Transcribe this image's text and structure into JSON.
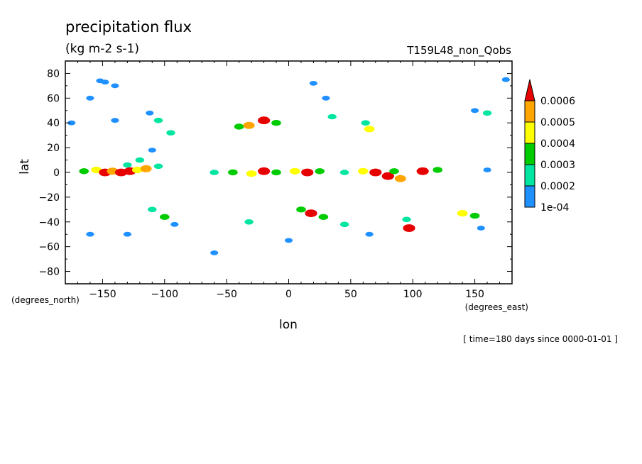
{
  "chart_data": {
    "type": "heatmap",
    "title": "precipitation flux",
    "subtitle": "(kg m-2 s-1)",
    "run_label": "T159L48_non_Qobs",
    "xlabel": "lon",
    "ylabel": "lat",
    "x_units": "(degrees_east)",
    "y_units": "(degrees_north)",
    "time_label": "[ time=180 days since 0000-01-01 ]",
    "xlim": [
      -180,
      180
    ],
    "ylim": [
      -90,
      90
    ],
    "x_ticks": [
      -150,
      -100,
      -50,
      0,
      50,
      100,
      150
    ],
    "y_ticks": [
      80,
      60,
      40,
      20,
      0,
      -20,
      -40,
      -60,
      -80
    ],
    "legend": {
      "placement": "right",
      "levels": [
        "1e-04",
        "0.0002",
        "0.0003",
        "0.0004",
        "0.0005",
        "0.0006"
      ],
      "colors": [
        "#1e90ff",
        "#00e5a0",
        "#00cc00",
        "#ffff00",
        "#ffa500",
        "#e60000"
      ]
    },
    "cells": [
      {
        "lon": -148,
        "lat": 73,
        "level": 1
      },
      {
        "lon": -152,
        "lat": 74,
        "level": 1
      },
      {
        "lon": -140,
        "lat": 70,
        "level": 1
      },
      {
        "lon": -160,
        "lat": 60,
        "level": 1
      },
      {
        "lon": -140,
        "lat": 42,
        "level": 1
      },
      {
        "lon": -175,
        "lat": 40,
        "level": 1
      },
      {
        "lon": -112,
        "lat": 48,
        "level": 1
      },
      {
        "lon": -105,
        "lat": 42,
        "level": 2
      },
      {
        "lon": -95,
        "lat": 32,
        "level": 2
      },
      {
        "lon": -110,
        "lat": 18,
        "level": 1
      },
      {
        "lon": -120,
        "lat": 10,
        "level": 2
      },
      {
        "lon": -130,
        "lat": 6,
        "level": 2
      },
      {
        "lon": -165,
        "lat": 1,
        "level": 3
      },
      {
        "lon": -155,
        "lat": 2,
        "level": 4
      },
      {
        "lon": -148,
        "lat": 0,
        "level": 6
      },
      {
        "lon": -142,
        "lat": 1,
        "level": 5
      },
      {
        "lon": -135,
        "lat": 0,
        "level": 6
      },
      {
        "lon": -128,
        "lat": 1,
        "level": 6
      },
      {
        "lon": -122,
        "lat": 2,
        "level": 4
      },
      {
        "lon": -115,
        "lat": 3,
        "level": 5
      },
      {
        "lon": -105,
        "lat": 5,
        "level": 2
      },
      {
        "lon": -40,
        "lat": 37,
        "level": 3
      },
      {
        "lon": -32,
        "lat": 38,
        "level": 5
      },
      {
        "lon": -20,
        "lat": 42,
        "level": 6
      },
      {
        "lon": -10,
        "lat": 40,
        "level": 3
      },
      {
        "lon": 20,
        "lat": 72,
        "level": 1
      },
      {
        "lon": 30,
        "lat": 60,
        "level": 1
      },
      {
        "lon": 35,
        "lat": 45,
        "level": 2
      },
      {
        "lon": 65,
        "lat": 35,
        "level": 4
      },
      {
        "lon": 62,
        "lat": 40,
        "level": 2
      },
      {
        "lon": 150,
        "lat": 50,
        "level": 1
      },
      {
        "lon": 160,
        "lat": 48,
        "level": 2
      },
      {
        "lon": 175,
        "lat": 75,
        "level": 1
      },
      {
        "lon": -60,
        "lat": 0,
        "level": 2
      },
      {
        "lon": -45,
        "lat": 0,
        "level": 3
      },
      {
        "lon": -30,
        "lat": -1,
        "level": 4
      },
      {
        "lon": -20,
        "lat": 1,
        "level": 6
      },
      {
        "lon": -10,
        "lat": 0,
        "level": 3
      },
      {
        "lon": 5,
        "lat": 1,
        "level": 4
      },
      {
        "lon": 15,
        "lat": 0,
        "level": 6
      },
      {
        "lon": 25,
        "lat": 1,
        "level": 3
      },
      {
        "lon": 45,
        "lat": 0,
        "level": 2
      },
      {
        "lon": 60,
        "lat": 1,
        "level": 4
      },
      {
        "lon": 70,
        "lat": 0,
        "level": 6
      },
      {
        "lon": 80,
        "lat": -3,
        "level": 6
      },
      {
        "lon": 90,
        "lat": -5,
        "level": 5
      },
      {
        "lon": 85,
        "lat": 1,
        "level": 3
      },
      {
        "lon": 108,
        "lat": 1,
        "level": 6
      },
      {
        "lon": 120,
        "lat": 2,
        "level": 3
      },
      {
        "lon": 160,
        "lat": 2,
        "level": 1
      },
      {
        "lon": -110,
        "lat": -30,
        "level": 2
      },
      {
        "lon": -100,
        "lat": -36,
        "level": 3
      },
      {
        "lon": -92,
        "lat": -42,
        "level": 1
      },
      {
        "lon": -32,
        "lat": -40,
        "level": 2
      },
      {
        "lon": 10,
        "lat": -30,
        "level": 3
      },
      {
        "lon": 18,
        "lat": -33,
        "level": 6
      },
      {
        "lon": 28,
        "lat": -36,
        "level": 3
      },
      {
        "lon": 45,
        "lat": -42,
        "level": 2
      },
      {
        "lon": 65,
        "lat": -50,
        "level": 1
      },
      {
        "lon": 95,
        "lat": -38,
        "level": 2
      },
      {
        "lon": 97,
        "lat": -45,
        "level": 6
      },
      {
        "lon": 140,
        "lat": -33,
        "level": 4
      },
      {
        "lon": 150,
        "lat": -35,
        "level": 3
      },
      {
        "lon": 155,
        "lat": -45,
        "level": 1
      },
      {
        "lon": -160,
        "lat": -50,
        "level": 1
      },
      {
        "lon": -130,
        "lat": -50,
        "level": 1
      },
      {
        "lon": -60,
        "lat": -65,
        "level": 1
      },
      {
        "lon": 0,
        "lat": -55,
        "level": 1
      }
    ]
  }
}
